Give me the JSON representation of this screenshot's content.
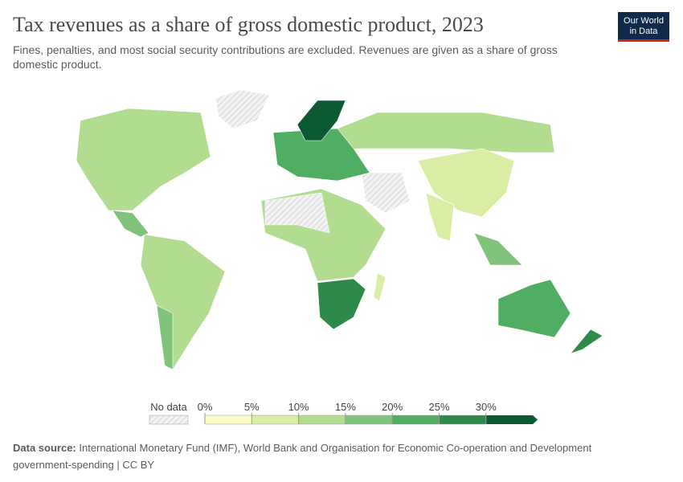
{
  "title": "Tax revenues as a share of gross domestic product, 2023",
  "subtitle": "Fines, penalties, and most social security contributions are excluded. Revenues are given as a share of gross domestic product.",
  "logo": [
    "Our World",
    "in Data"
  ],
  "legend": {
    "no_data": "No data",
    "ticks": [
      {
        "value": 0,
        "label": "0%"
      },
      {
        "value": 5,
        "label": "5%"
      },
      {
        "value": 10,
        "label": "10%"
      },
      {
        "value": 15,
        "label": "15%"
      },
      {
        "value": 20,
        "label": "20%"
      },
      {
        "value": 25,
        "label": "25%"
      },
      {
        "value": 30,
        "label": "30%"
      }
    ],
    "colors": [
      "#fdfbc8",
      "#d9eda4",
      "#b2dc8f",
      "#80c47c",
      "#4fae62",
      "#2e8a4b",
      "#0c5a33"
    ]
  },
  "source": {
    "label": "Data source:",
    "text": "International Monetary Fund (IMF), World Bank and Organisation for Economic Co-operation and Development",
    "text2": "government-spending | CC BY"
  }
}
